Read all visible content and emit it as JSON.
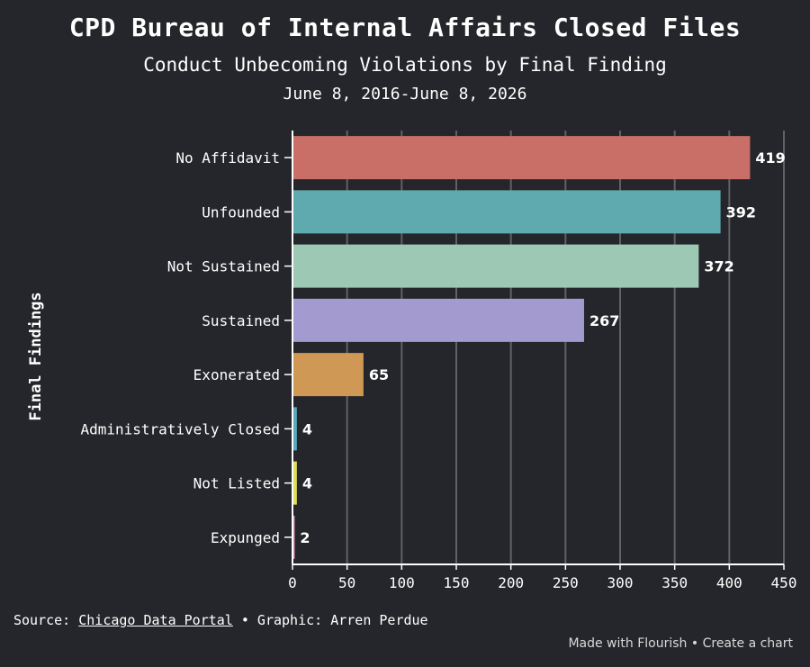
{
  "header": {
    "title": "CPD Bureau of Internal Affairs Closed Files",
    "subtitle": "Conduct Unbecoming Violations by Final Finding",
    "date_range": "June 8, 2016-June 8, 2026"
  },
  "chart_data": {
    "type": "bar",
    "orientation": "horizontal",
    "ylabel": "Final Findings",
    "xlabel": "",
    "xlim": [
      0,
      450
    ],
    "x_ticks": [
      0,
      50,
      100,
      150,
      200,
      250,
      300,
      350,
      400,
      450
    ],
    "grid": true,
    "categories": [
      "No Affidavit",
      "Unfounded",
      "Not Sustained",
      "Sustained",
      "Exonerated",
      "Administratively Closed",
      "Not Listed",
      "Expunged"
    ],
    "values": [
      419,
      392,
      372,
      267,
      65,
      4,
      4,
      2
    ],
    "colors": [
      "#c96f68",
      "#5eaaae",
      "#9dc9b4",
      "#a39bcf",
      "#cf9854",
      "#5aa9bf",
      "#dede58",
      "#e39ab2"
    ]
  },
  "footer": {
    "source_prefix": "Source: ",
    "source_link": "Chicago Data Portal",
    "source_suffix": " • Graphic: Arren Perdue",
    "flourish_made": "Made with Flourish",
    "flourish_sep": " • ",
    "flourish_create": "Create a chart"
  }
}
